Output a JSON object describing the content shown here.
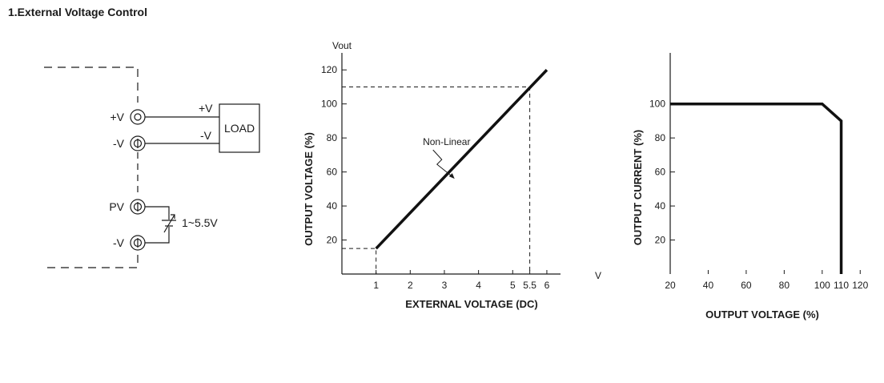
{
  "title": "1.External Voltage Control",
  "circuit": {
    "terminal_pos": "+V",
    "terminal_neg": "-V",
    "load_pos": "+V",
    "load_neg": "-V",
    "load_label": "LOAD",
    "terminal_pv": "PV",
    "terminal_neg2": "-V",
    "source_label": "1~5.5V"
  },
  "chart_data": [
    {
      "type": "line",
      "title": "",
      "xlabel": "EXTERNAL VOLTAGE (DC)",
      "ylabel": "OUTPUT VOLTAGE (%)",
      "y_unit_label": "Vout",
      "x_unit_label": "V",
      "xlim": [
        0,
        6.4
      ],
      "ylim": [
        0,
        130
      ],
      "x_ticks": [
        1,
        2,
        3,
        4,
        5,
        5.5,
        6
      ],
      "x_tick_labels": [
        "1",
        "2",
        "3",
        "4",
        "5",
        "5.5",
        "6"
      ],
      "y_ticks": [
        20,
        40,
        60,
        80,
        100,
        120
      ],
      "y_tick_labels": [
        "20",
        "40",
        "60",
        "80",
        "100",
        "120"
      ],
      "series": [
        {
          "name": "",
          "x": [
            1,
            6
          ],
          "y": [
            15,
            120
          ]
        }
      ],
      "reference_points": [
        {
          "x": 1,
          "y": 15
        },
        {
          "x": 5.5,
          "y": 110
        }
      ],
      "annotation": "Non-Linear",
      "grid": false
    },
    {
      "type": "line",
      "title": "",
      "xlabel": "OUTPUT VOLTAGE (%)",
      "ylabel": "OUTPUT CURRENT (%)",
      "xlim": [
        20,
        130
      ],
      "ylim": [
        0,
        130
      ],
      "x_ticks": [
        20,
        40,
        60,
        80,
        100,
        110,
        120
      ],
      "x_tick_labels": [
        "20",
        "40",
        "60",
        "80",
        "100",
        "110",
        "120"
      ],
      "y_ticks": [
        20,
        40,
        60,
        80,
        100
      ],
      "y_tick_labels": [
        "20",
        "40",
        "60",
        "80",
        "100"
      ],
      "series": [
        {
          "name": "",
          "x": [
            20,
            100,
            110,
            110
          ],
          "y": [
            100,
            100,
            90,
            0
          ]
        }
      ],
      "grid": false
    }
  ]
}
